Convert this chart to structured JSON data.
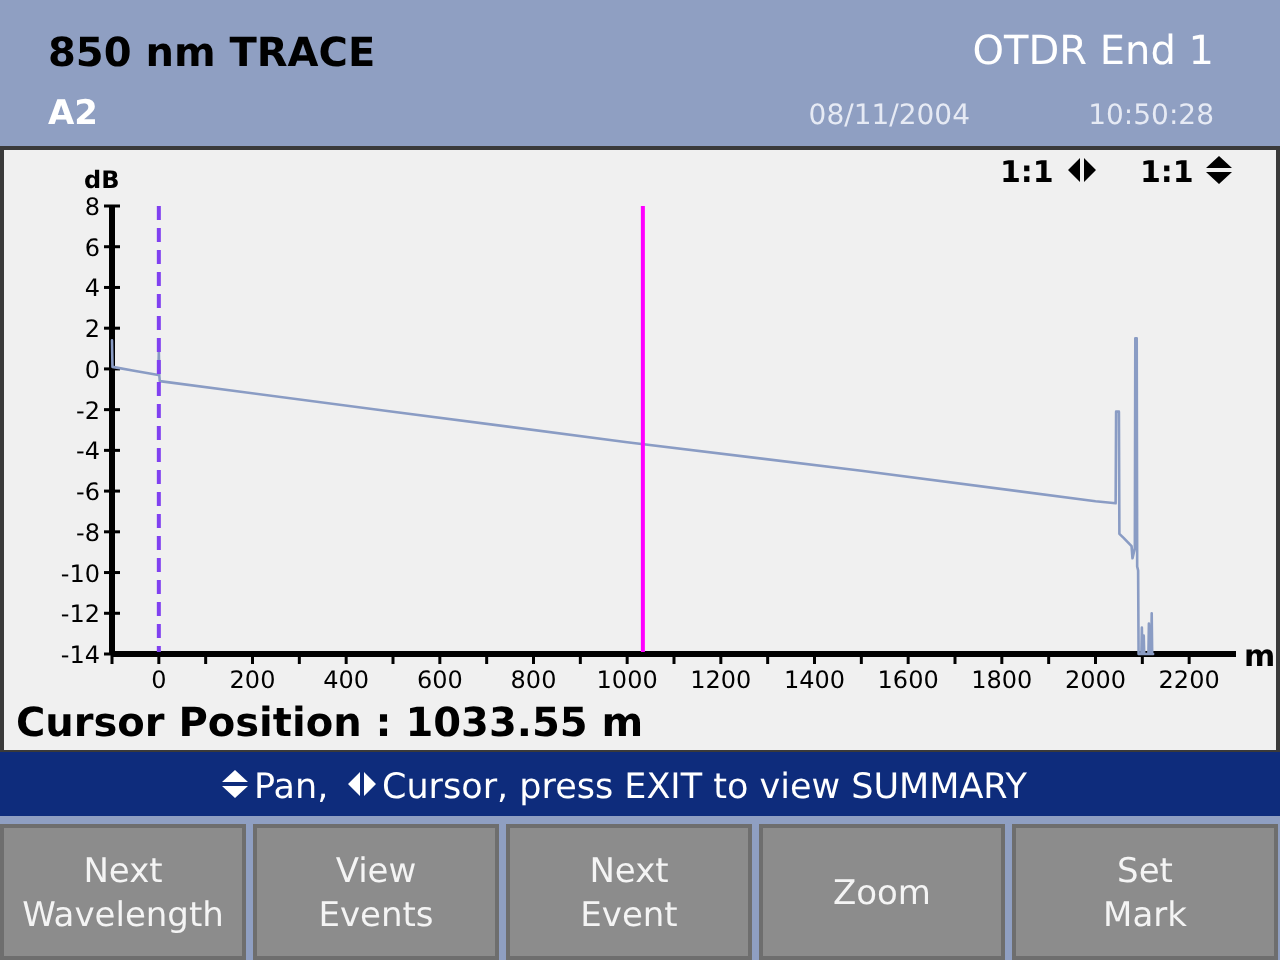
{
  "chart_data": {
    "type": "line",
    "title": "850 nm TRACE",
    "subtitle": "A2",
    "xlabel": "m",
    "ylabel": "dB",
    "x": [
      -100,
      -99,
      -50,
      -1,
      0,
      1,
      2,
      500,
      1000,
      1500,
      2000,
      2043,
      2044,
      2050,
      2051,
      2060,
      2077,
      2079,
      2084,
      2085,
      2088,
      2089,
      2091,
      2092,
      2098,
      2099,
      2100,
      2102,
      2103,
      2104,
      2113,
      2114,
      2116,
      2119,
      2120,
      2121,
      2123
    ],
    "series": [
      {
        "color": "#8a9cc4",
        "values": [
          1.4,
          0.1,
          -0.1,
          -0.3,
          0.9,
          -0.3,
          -0.6,
          -2.1,
          -3.6,
          -5.0,
          -6.5,
          -6.6,
          -2.1,
          -2.1,
          -8.1,
          -8.3,
          -8.7,
          -9.3,
          -8.8,
          1.5,
          1.5,
          -9.7,
          -9.9,
          -14,
          -14,
          -12.7,
          -14,
          -14,
          -13.1,
          -14,
          -14,
          -12.5,
          -14,
          -14,
          -12,
          -14,
          -14
        ]
      }
    ],
    "xlim": [
      -100,
      2300
    ],
    "ylim": [
      -14,
      8
    ],
    "xticks": [
      {
        "value": -100,
        "label": null
      },
      0,
      {
        "value": 100,
        "label": null
      },
      200,
      {
        "value": 300,
        "label": null
      },
      400,
      {
        "value": 500,
        "label": null
      },
      600,
      {
        "value": 700,
        "label": null
      },
      800,
      {
        "value": 900,
        "label": null
      },
      1000,
      {
        "value": 1100,
        "label": null
      },
      1200,
      {
        "value": 1300,
        "label": null
      },
      1400,
      {
        "value": 1500,
        "label": null
      },
      1600,
      {
        "value": 1700,
        "label": null
      },
      1800,
      {
        "value": 1900,
        "label": null
      },
      2000,
      {
        "value": 2100,
        "label": null
      },
      2200
    ],
    "yticks": [
      -14,
      -12,
      -10,
      -8,
      -6,
      -4,
      -2,
      0,
      2,
      4,
      6,
      8
    ],
    "ref_lines": [
      {
        "axis": "x",
        "value": 0,
        "color": "#8040f0",
        "line_style": "dashed"
      },
      {
        "axis": "x",
        "value": 1033.55,
        "color": "#ff00ff"
      }
    ],
    "annotations": [
      "OTDR End 1",
      "08/11/2004",
      "10:50:28",
      "1:1",
      "1:1",
      "Cursor Position : 1033.55 m",
      "Pan,",
      "Cursor, press EXIT to view SUMMARY",
      "Next Wavelength",
      "View Events",
      "Next Event",
      "Zoom",
      "Set Mark"
    ]
  }
}
